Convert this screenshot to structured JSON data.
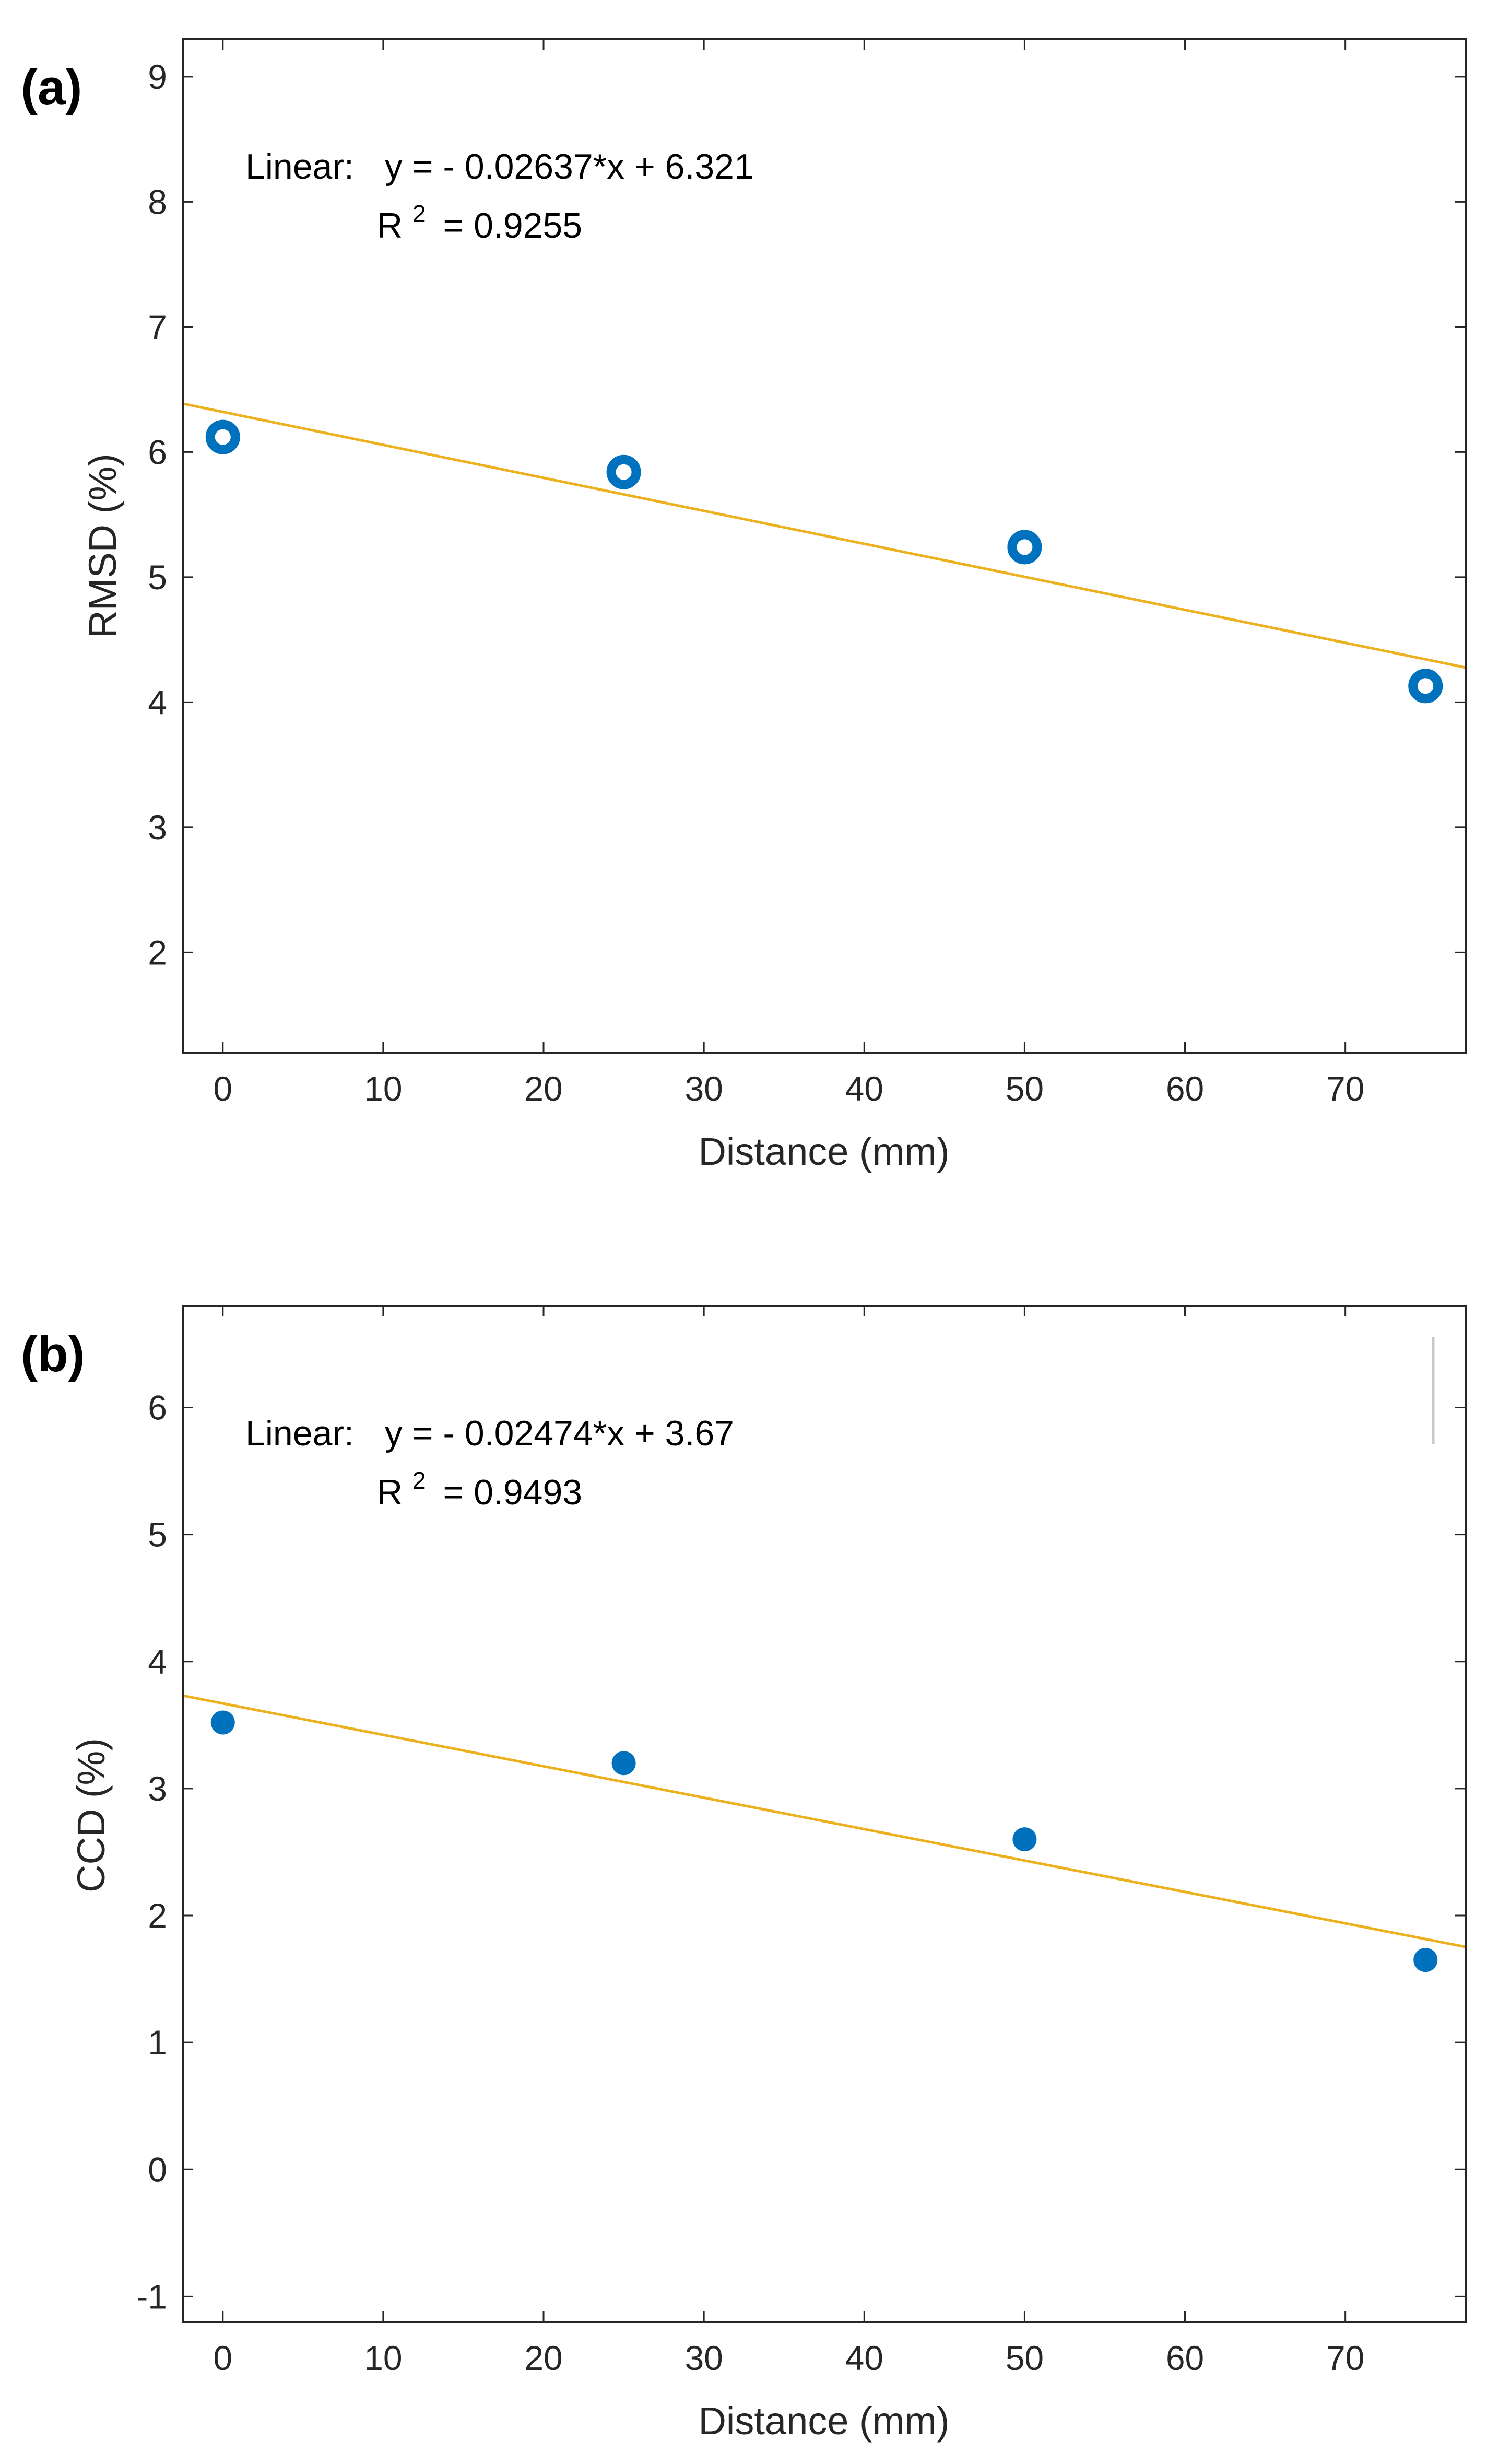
{
  "chart_data": [
    {
      "type": "scatter",
      "panel_label": "(a)",
      "xlabel": "Distance (mm)",
      "ylabel": "RMSD (%)",
      "xlim": [
        -2.5,
        77.5
      ],
      "ylim": [
        1.2,
        9.3
      ],
      "xticks": [
        0,
        10,
        20,
        30,
        40,
        50,
        60,
        70
      ],
      "yticks": [
        2,
        3,
        4,
        5,
        6,
        7,
        8,
        9
      ],
      "marker": "hollow-circle",
      "points": {
        "x": [
          0,
          25,
          50,
          75
        ],
        "y": [
          6.12,
          5.84,
          5.24,
          4.13
        ]
      },
      "fit": {
        "slope": -0.02637,
        "intercept": 6.321,
        "color": "#EDB120",
        "label_prefix": "Linear:",
        "equation": "y = - 0.02637*x + 6.321",
        "r2_prefix": "R",
        "r2_exponent": "2",
        "r2_value": "= 0.9255"
      },
      "marker_color": "#0072BD"
    },
    {
      "type": "scatter",
      "panel_label": "(b)",
      "xlabel": "Distance (mm)",
      "ylabel": "CCD (%)",
      "xlim": [
        -2.5,
        77.5
      ],
      "ylim": [
        -1.2,
        6.8
      ],
      "xticks": [
        0,
        10,
        20,
        30,
        40,
        50,
        60,
        70
      ],
      "yticks": [
        -1,
        0,
        1,
        2,
        3,
        4,
        5,
        6
      ],
      "marker": "filled-circle",
      "points": {
        "x": [
          0,
          25,
          50,
          75
        ],
        "y": [
          3.52,
          3.2,
          2.6,
          1.65
        ]
      },
      "fit": {
        "slope": -0.02474,
        "intercept": 3.67,
        "color": "#EDB120",
        "label_prefix": "Linear:",
        "equation": "y = - 0.02474*x + 3.67",
        "r2_prefix": "R",
        "r2_exponent": "2",
        "r2_value": "= 0.9493"
      },
      "marker_color": "#0072BD"
    }
  ]
}
